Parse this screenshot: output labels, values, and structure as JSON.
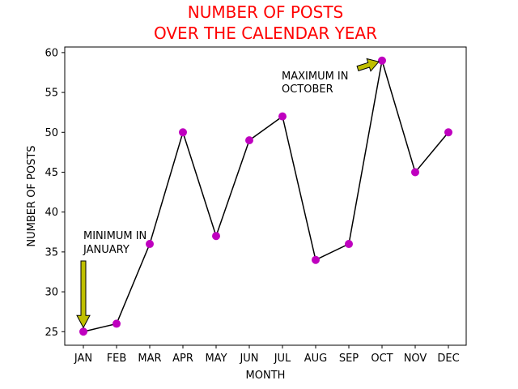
{
  "chart_data": {
    "type": "line",
    "title_lines": [
      "NUMBER OF POSTS",
      "OVER THE CALENDAR YEAR"
    ],
    "xlabel": "MONTH",
    "ylabel": "NUMBER OF POSTS",
    "categories": [
      "JAN",
      "FEB",
      "MAR",
      "APR",
      "MAY",
      "JUN",
      "JUL",
      "AUG",
      "SEP",
      "OCT",
      "NOV",
      "DEC"
    ],
    "values": [
      25,
      26,
      36,
      50,
      37,
      49,
      52,
      34,
      36,
      59,
      45,
      50
    ],
    "ylim": [
      23.3,
      60.7
    ],
    "yticks": [
      25,
      30,
      35,
      40,
      45,
      50,
      55,
      60
    ],
    "grid": false,
    "colors": {
      "title": "#ff0000",
      "line": "#000000",
      "marker": "#bf00bf",
      "arrow_fill": "#bfbf00"
    },
    "annotations": [
      {
        "lines": [
          "MINIMUM IN",
          "JANUARY"
        ],
        "point_index": 0
      },
      {
        "lines": [
          "MAXIMUM IN",
          "OCTOBER"
        ],
        "point_index": 9
      }
    ]
  }
}
